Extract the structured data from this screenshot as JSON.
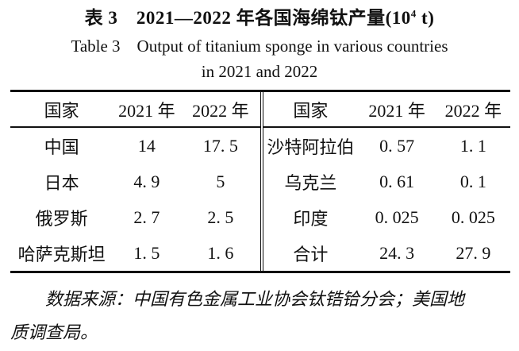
{
  "page": {
    "title_cn_prefix": "表 3　2021—2022 年各国海绵钛产量(10",
    "title_cn_sup": "4",
    "title_cn_suffix": " t)",
    "title_en_line1": "Table 3　Output of titanium sponge in various countries",
    "title_en_line2": "in 2021 and 2022"
  },
  "table": {
    "left": {
      "headers": [
        "国家",
        "2021 年",
        "2022 年"
      ],
      "rows": [
        [
          "中国",
          "14",
          "17. 5"
        ],
        [
          "日本",
          "4. 9",
          "5"
        ],
        [
          "俄罗斯",
          "2. 7",
          "2. 5"
        ],
        [
          "哈萨克斯坦",
          "1. 5",
          "1. 6"
        ]
      ]
    },
    "right": {
      "headers": [
        "国家",
        "2021 年",
        "2022 年"
      ],
      "rows": [
        [
          "沙特阿拉伯",
          "0. 57",
          "1. 1"
        ],
        [
          "乌克兰",
          "0. 61",
          "0. 1"
        ],
        [
          "印度",
          "0. 025",
          "0. 025"
        ],
        [
          "合计",
          "24. 3",
          "27. 9"
        ]
      ]
    }
  },
  "footnote": {
    "line1": "数据来源：中国有色金属工业协会钛锆铪分会；美国地",
    "line2": "质调查局。"
  }
}
